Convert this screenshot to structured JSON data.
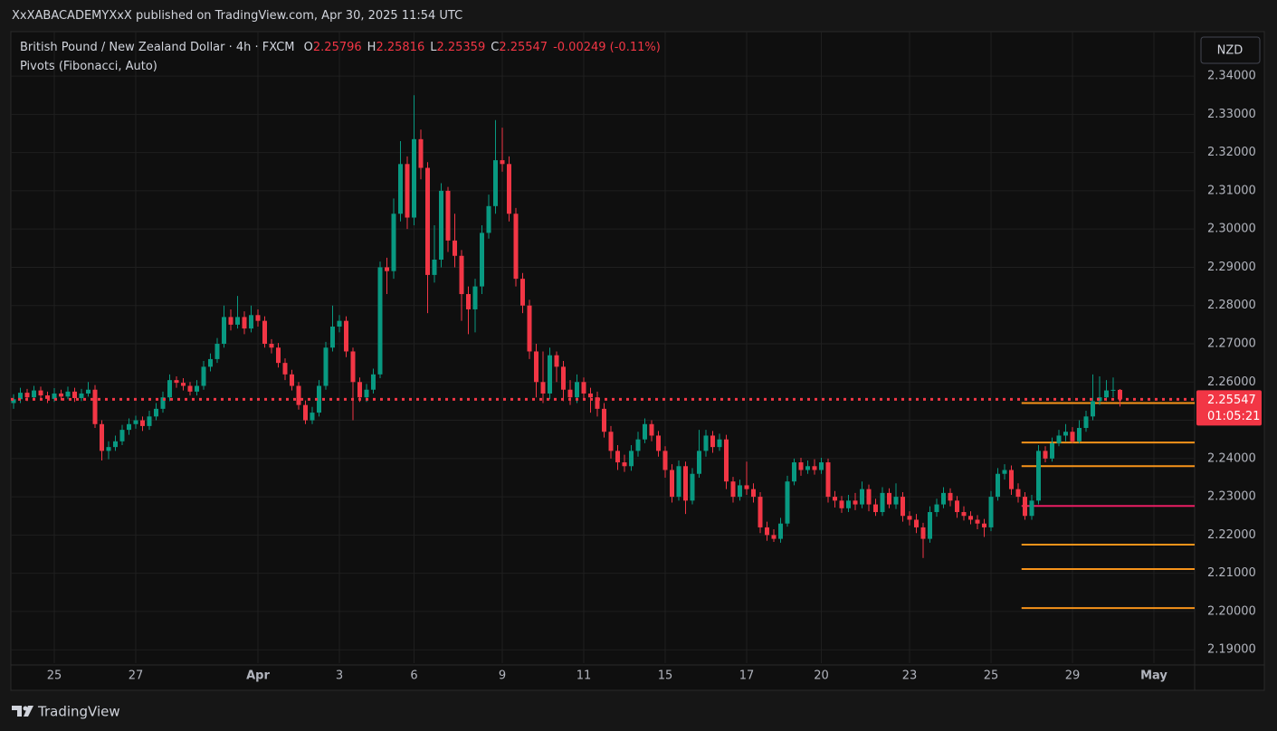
{
  "header": {
    "publisher": "XxXABACADEMYXxX published on TradingView.com, Apr 30, 2025 11:54 UTC"
  },
  "footer": {
    "brand": "TradingView"
  },
  "chart_data": {
    "type": "candlestick",
    "title": "British Pound / New Zealand Dollar · 4h · FXCM",
    "ohlc_labels": [
      "O",
      "H",
      "L",
      "C"
    ],
    "ohlc_values": [
      2.25796,
      2.25816,
      2.25359,
      2.25547
    ],
    "change": "-0.00249 (-0.11%)",
    "indicator": "Pivots (Fibonacci, Auto)",
    "currency": "NZD",
    "countdown": "01:05:21",
    "last_price": 2.25547,
    "up_color": "#089981",
    "down_color": "#f23645",
    "grid": true,
    "categories": [
      null,
      null,
      null,
      null,
      null,
      null,
      "25",
      null,
      null,
      null,
      null,
      null,
      null,
      null,
      null,
      null,
      null,
      null,
      "27",
      null,
      null,
      null,
      null,
      null,
      null,
      null,
      null,
      null,
      null,
      null,
      null,
      null,
      null,
      null,
      null,
      null,
      "Apr",
      null,
      null,
      null,
      null,
      null,
      null,
      null,
      null,
      null,
      null,
      null,
      "3",
      null,
      null,
      null,
      null,
      null,
      null,
      null,
      null,
      null,
      null,
      "6",
      null,
      null,
      null,
      null,
      null,
      null,
      null,
      null,
      null,
      null,
      null,
      null,
      "9",
      null,
      null,
      null,
      null,
      null,
      null,
      null,
      null,
      null,
      null,
      null,
      "11",
      null,
      null,
      null,
      null,
      null,
      null,
      null,
      null,
      null,
      null,
      null,
      "15",
      null,
      null,
      null,
      null,
      null,
      null,
      null,
      null,
      null,
      null,
      null,
      "17",
      null,
      null,
      null,
      null,
      null,
      null,
      null,
      null,
      null,
      null,
      "20",
      null,
      null,
      null,
      null,
      null,
      null,
      null,
      null,
      null,
      null,
      null,
      null,
      "23",
      null,
      null,
      null,
      null,
      null,
      null,
      null,
      null,
      null,
      null,
      null,
      "25",
      null,
      null,
      null,
      null,
      null,
      null,
      null,
      null,
      null,
      null,
      null,
      "29",
      null,
      null,
      null,
      null,
      null,
      null,
      null,
      null,
      null,
      null,
      null,
      "May"
    ],
    "open": [
      2.2545,
      2.2555,
      2.2572,
      2.256,
      2.2578,
      2.2565,
      2.2556,
      2.257,
      2.2562,
      2.2575,
      2.2558,
      2.257,
      2.258,
      2.249,
      2.242,
      2.243,
      2.2445,
      2.2475,
      2.249,
      2.25,
      2.2485,
      2.251,
      2.253,
      2.256,
      2.2605,
      2.2598,
      2.259,
      2.2575,
      2.259,
      2.264,
      2.266,
      2.27,
      2.277,
      2.275,
      2.277,
      2.274,
      2.2775,
      2.276,
      2.27,
      2.269,
      2.265,
      2.262,
      2.259,
      2.254,
      2.25,
      2.252,
      2.259,
      2.269,
      2.2745,
      2.276,
      2.268,
      2.26,
      2.256,
      2.258,
      2.262,
      2.29,
      2.289,
      2.304,
      2.317,
      2.303,
      2.3235,
      2.316,
      2.288,
      2.292,
      2.31,
      2.297,
      2.293,
      2.283,
      2.279,
      2.285,
      2.299,
      2.306,
      2.318,
      2.317,
      2.304,
      2.287,
      2.28,
      2.268,
      2.26,
      2.257,
      2.267,
      2.264,
      2.258,
      2.256,
      2.26,
      2.257,
      2.256,
      2.253,
      2.247,
      2.242,
      2.239,
      2.238,
      2.242,
      2.245,
      2.249,
      2.246,
      2.242,
      2.237,
      2.23,
      2.238,
      2.229,
      2.236,
      2.242,
      2.246,
      2.243,
      2.245,
      2.234,
      2.23,
      2.233,
      2.232,
      2.23,
      2.222,
      2.22,
      2.219,
      2.223,
      2.234,
      2.239,
      2.237,
      2.238,
      2.237,
      2.239,
      2.23,
      2.229,
      2.227,
      2.229,
      2.228,
      2.232,
      2.228,
      2.226,
      2.231,
      2.228,
      2.23,
      2.225,
      2.224,
      2.222,
      2.219,
      2.226,
      2.228,
      2.231,
      2.229,
      2.226,
      2.225,
      2.224,
      2.223,
      2.222,
      2.23,
      2.236,
      2.237,
      2.232,
      2.23,
      2.225,
      2.229,
      2.242,
      2.24,
      2.244,
      2.246,
      2.247,
      2.2445,
      2.248,
      2.251,
      2.255,
      2.256,
      2.2578,
      2.25796,
      null,
      null,
      null,
      null,
      null
    ],
    "high": [
      2.2568,
      2.2585,
      2.2582,
      2.259,
      2.2588,
      2.2575,
      2.2584,
      2.258,
      2.2588,
      2.2585,
      2.2582,
      2.26,
      2.2592,
      2.25,
      2.2445,
      2.246,
      2.2488,
      2.2505,
      2.2512,
      2.251,
      2.2525,
      2.2545,
      2.2575,
      2.262,
      2.2615,
      2.261,
      2.26,
      2.2605,
      2.2655,
      2.2675,
      2.2715,
      2.28,
      2.279,
      2.2825,
      2.2785,
      2.28,
      2.279,
      2.2772,
      2.2712,
      2.2702,
      2.2662,
      2.2632,
      2.26,
      2.2552,
      2.2535,
      2.2605,
      2.2705,
      2.28,
      2.2775,
      2.2772,
      2.269,
      2.2612,
      2.2595,
      2.2635,
      2.2915,
      2.2925,
      2.308,
      2.323,
      2.319,
      2.335,
      2.326,
      2.3175,
      2.301,
      2.312,
      2.311,
      2.304,
      2.2945,
      2.285,
      2.287,
      2.301,
      2.309,
      2.3285,
      2.3265,
      2.319,
      2.3055,
      2.2885,
      2.2815,
      2.27,
      2.268,
      2.269,
      2.268,
      2.2655,
      2.2605,
      2.262,
      2.2612,
      2.2585,
      2.2575,
      2.2545,
      2.2485,
      2.2435,
      2.241,
      2.2435,
      2.247,
      2.2505,
      2.25,
      2.2472,
      2.2432,
      2.2385,
      2.2395,
      2.2392,
      2.2375,
      2.2475,
      2.2475,
      2.2472,
      2.2465,
      2.2462,
      2.2352,
      2.2345,
      2.2392,
      2.2335,
      2.2312,
      2.2235,
      2.2215,
      2.2245,
      2.2355,
      2.24,
      2.2402,
      2.2395,
      2.2398,
      2.2402,
      2.24,
      2.2315,
      2.2302,
      2.2305,
      2.231,
      2.234,
      2.2332,
      2.2295,
      2.2325,
      2.2322,
      2.2335,
      2.2312,
      2.2262,
      2.2255,
      2.2232,
      2.2275,
      2.2295,
      2.2325,
      2.2322,
      2.2302,
      2.2275,
      2.2262,
      2.2252,
      2.2242,
      2.2315,
      2.2375,
      2.2385,
      2.2382,
      2.2335,
      2.2312,
      2.2305,
      2.2435,
      2.2432,
      2.2455,
      2.2475,
      2.249,
      2.2482,
      2.25,
      2.2525,
      2.262,
      2.2615,
      2.2605,
      2.2612,
      2.25816,
      null,
      null,
      null,
      null,
      null
    ],
    "low": [
      2.253,
      2.2545,
      2.255,
      2.2552,
      2.2555,
      2.2545,
      2.2548,
      2.2552,
      2.2555,
      2.2548,
      2.255,
      2.2562,
      2.248,
      2.2395,
      2.2398,
      2.242,
      2.2435,
      2.2462,
      2.2478,
      2.2472,
      2.2475,
      2.25,
      2.252,
      2.255,
      2.2585,
      2.2578,
      2.2565,
      2.2565,
      2.258,
      2.2628,
      2.265,
      2.269,
      2.2735,
      2.274,
      2.2725,
      2.273,
      2.2745,
      2.269,
      2.2675,
      2.2638,
      2.2605,
      2.2578,
      2.2528,
      2.249,
      2.249,
      2.251,
      2.258,
      2.268,
      2.273,
      2.2665,
      2.25,
      2.2548,
      2.2548,
      2.257,
      2.261,
      2.283,
      2.287,
      2.302,
      2.3,
      2.301,
      2.313,
      2.278,
      2.286,
      2.29,
      2.294,
      2.29,
      2.276,
      2.2725,
      2.273,
      2.283,
      2.2975,
      2.304,
      2.315,
      2.302,
      2.285,
      2.278,
      2.266,
      2.256,
      2.2545,
      2.2555,
      2.26,
      2.255,
      2.254,
      2.2545,
      2.2555,
      2.252,
      2.251,
      2.2455,
      2.24,
      2.237,
      2.2365,
      2.2368,
      2.2405,
      2.244,
      2.2445,
      2.2405,
      2.235,
      2.2285,
      2.229,
      2.2255,
      2.228,
      2.235,
      2.2405,
      2.2415,
      2.242,
      2.232,
      2.2285,
      2.229,
      2.2305,
      2.2285,
      2.2205,
      2.2185,
      2.2182,
      2.218,
      2.2222,
      2.233,
      2.2355,
      2.236,
      2.2358,
      2.236,
      2.2285,
      2.2272,
      2.2258,
      2.226,
      2.2265,
      2.227,
      2.2262,
      2.225,
      2.225,
      2.227,
      2.2268,
      2.2235,
      2.2225,
      2.2205,
      2.214,
      2.218,
      2.2248,
      2.227,
      2.2275,
      2.2245,
      2.2238,
      2.2228,
      2.2215,
      2.2195,
      2.221,
      2.229,
      2.2345,
      2.2305,
      2.2285,
      2.224,
      2.224,
      2.228,
      2.239,
      2.2392,
      2.2432,
      2.2445,
      2.244,
      2.244,
      2.247,
      2.25,
      2.254,
      2.255,
      2.256,
      2.25359,
      null,
      null,
      null,
      null,
      null
    ],
    "close": [
      2.2555,
      2.2572,
      2.256,
      2.2578,
      2.2565,
      2.2556,
      2.257,
      2.2562,
      2.2575,
      2.2558,
      2.257,
      2.258,
      2.249,
      2.242,
      2.243,
      2.2445,
      2.2475,
      2.249,
      2.25,
      2.2485,
      2.251,
      2.253,
      2.256,
      2.2605,
      2.2598,
      2.259,
      2.2575,
      2.259,
      2.264,
      2.266,
      2.27,
      2.277,
      2.275,
      2.277,
      2.274,
      2.2775,
      2.276,
      2.27,
      2.269,
      2.265,
      2.262,
      2.259,
      2.254,
      2.25,
      2.252,
      2.259,
      2.269,
      2.2745,
      2.276,
      2.268,
      2.26,
      2.256,
      2.258,
      2.262,
      2.29,
      2.289,
      2.304,
      2.317,
      2.303,
      2.3235,
      2.316,
      2.288,
      2.292,
      2.31,
      2.297,
      2.293,
      2.283,
      2.279,
      2.285,
      2.299,
      2.306,
      2.318,
      2.317,
      2.304,
      2.287,
      2.28,
      2.268,
      2.26,
      2.257,
      2.267,
      2.264,
      2.258,
      2.256,
      2.26,
      2.257,
      2.256,
      2.253,
      2.247,
      2.242,
      2.239,
      2.238,
      2.242,
      2.245,
      2.249,
      2.246,
      2.242,
      2.237,
      2.23,
      2.238,
      2.229,
      2.236,
      2.242,
      2.246,
      2.243,
      2.245,
      2.234,
      2.23,
      2.233,
      2.232,
      2.23,
      2.222,
      2.22,
      2.219,
      2.223,
      2.234,
      2.239,
      2.237,
      2.238,
      2.237,
      2.239,
      2.23,
      2.229,
      2.227,
      2.229,
      2.228,
      2.232,
      2.228,
      2.226,
      2.231,
      2.228,
      2.23,
      2.225,
      2.224,
      2.222,
      2.219,
      2.226,
      2.228,
      2.231,
      2.229,
      2.226,
      2.225,
      2.224,
      2.223,
      2.222,
      2.23,
      2.236,
      2.237,
      2.232,
      2.23,
      2.225,
      2.229,
      2.242,
      2.24,
      2.244,
      2.246,
      2.247,
      2.2445,
      2.248,
      2.251,
      2.255,
      2.256,
      2.2578,
      2.25796,
      2.25547,
      null,
      null,
      null,
      null,
      null
    ],
    "pivots": {
      "levels": [
        2.2545,
        2.2442,
        2.238,
        2.2276,
        2.2175,
        2.2111,
        2.2009
      ],
      "colors": [
        "#f7931a",
        "#f7931a",
        "#f7931a",
        "#e91e63",
        "#f7931a",
        "#f7931a",
        "#f7931a"
      ]
    },
    "ylim": [
      2.1865,
      2.3509
    ],
    "yticks": [
      {
        "value": 2.19,
        "label": "2.19000"
      },
      {
        "value": 2.2,
        "label": "2.20000"
      },
      {
        "value": 2.21,
        "label": "2.21000"
      },
      {
        "value": 2.22,
        "label": "2.22000"
      },
      {
        "value": 2.23,
        "label": "2.23000"
      },
      {
        "value": 2.24,
        "label": "2.24000"
      },
      {
        "value": 2.25,
        "label": "2.25000"
      },
      {
        "value": 2.26,
        "label": "2.26000"
      },
      {
        "value": 2.27,
        "label": "2.27000"
      },
      {
        "value": 2.28,
        "label": "2.28000"
      },
      {
        "value": 2.29,
        "label": "2.29000"
      },
      {
        "value": 2.3,
        "label": "2.30000"
      },
      {
        "value": 2.31,
        "label": "2.31000"
      },
      {
        "value": 2.32,
        "label": "2.32000"
      },
      {
        "value": 2.33,
        "label": "2.33000"
      },
      {
        "value": 2.34,
        "label": "2.34000"
      }
    ]
  }
}
